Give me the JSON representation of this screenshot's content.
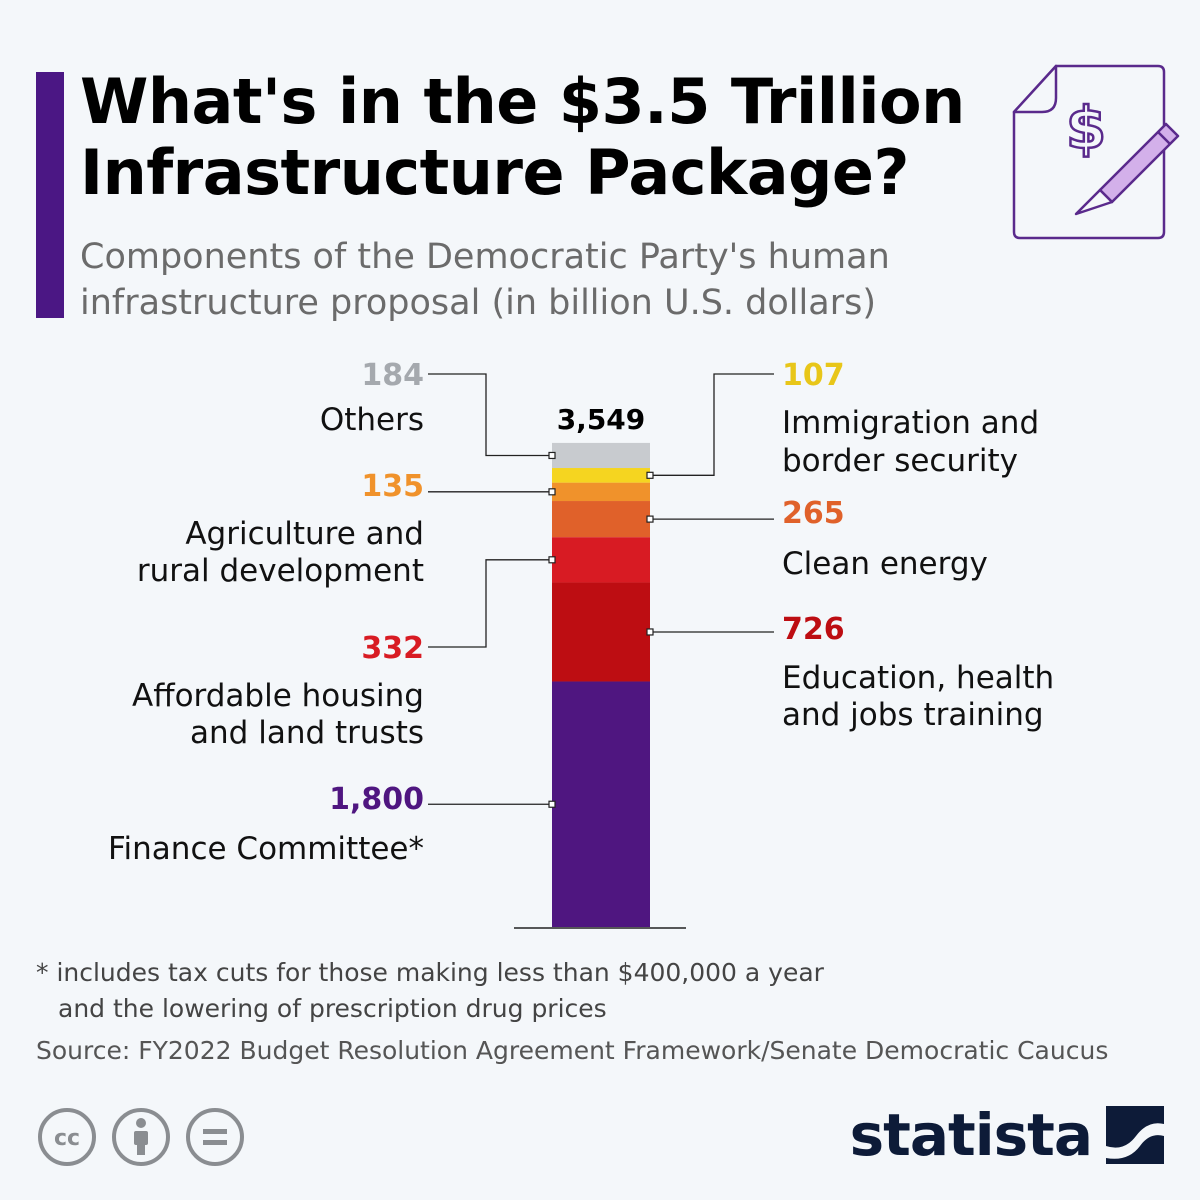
{
  "header": {
    "title_line1": "What's in the $3.5 Trillion",
    "title_line2": "Infrastructure Package?",
    "subtitle_line1": "Components of the Democratic Party's human",
    "subtitle_line2": "infrastructure proposal (in billion U.S. dollars)",
    "icon": "dollar-document-pencil-icon"
  },
  "chart_data": {
    "type": "bar",
    "stacked": true,
    "total_label": "3,549",
    "total": 3549,
    "series": [
      {
        "name": "Finance Committee*",
        "value": 1800,
        "value_label": "1,800",
        "color": "#4f1680",
        "label_color": "#4f1680",
        "side": "left"
      },
      {
        "name": "Education, health and jobs training",
        "value": 726,
        "value_label": "726",
        "color": "#bd0d12",
        "label_color": "#bd0d12",
        "side": "right"
      },
      {
        "name": "Affordable housing and land trusts",
        "value": 332,
        "value_label": "332",
        "color": "#d81b23",
        "label_color": "#d81b23",
        "side": "left"
      },
      {
        "name": "Clean energy",
        "value": 265,
        "value_label": "265",
        "color": "#e0612a",
        "label_color": "#e0612a",
        "side": "right"
      },
      {
        "name": "Agriculture and rural development",
        "value": 135,
        "value_label": "135",
        "color": "#f0922b",
        "label_color": "#f0922b",
        "side": "left"
      },
      {
        "name": "Immigration and border security",
        "value": 107,
        "value_label": "107",
        "color": "#f5d520",
        "label_color": "#e8c619",
        "side": "right"
      },
      {
        "name": "Others",
        "value": 184,
        "value_label": "184",
        "color": "#c8cbcf",
        "label_color": "#a5a9ae",
        "side": "left"
      }
    ]
  },
  "footnote": {
    "line1": "* includes tax cuts for those making less than $400,000 a year",
    "line2": "and the lowering of prescription drug prices"
  },
  "source": "Source: FY2022 Budget Resolution Agreement Framework/Senate Democratic Caucus",
  "footer": {
    "license_icons": [
      "cc-icon",
      "attribution-icon",
      "no-derivatives-icon"
    ],
    "brand": "statista"
  }
}
